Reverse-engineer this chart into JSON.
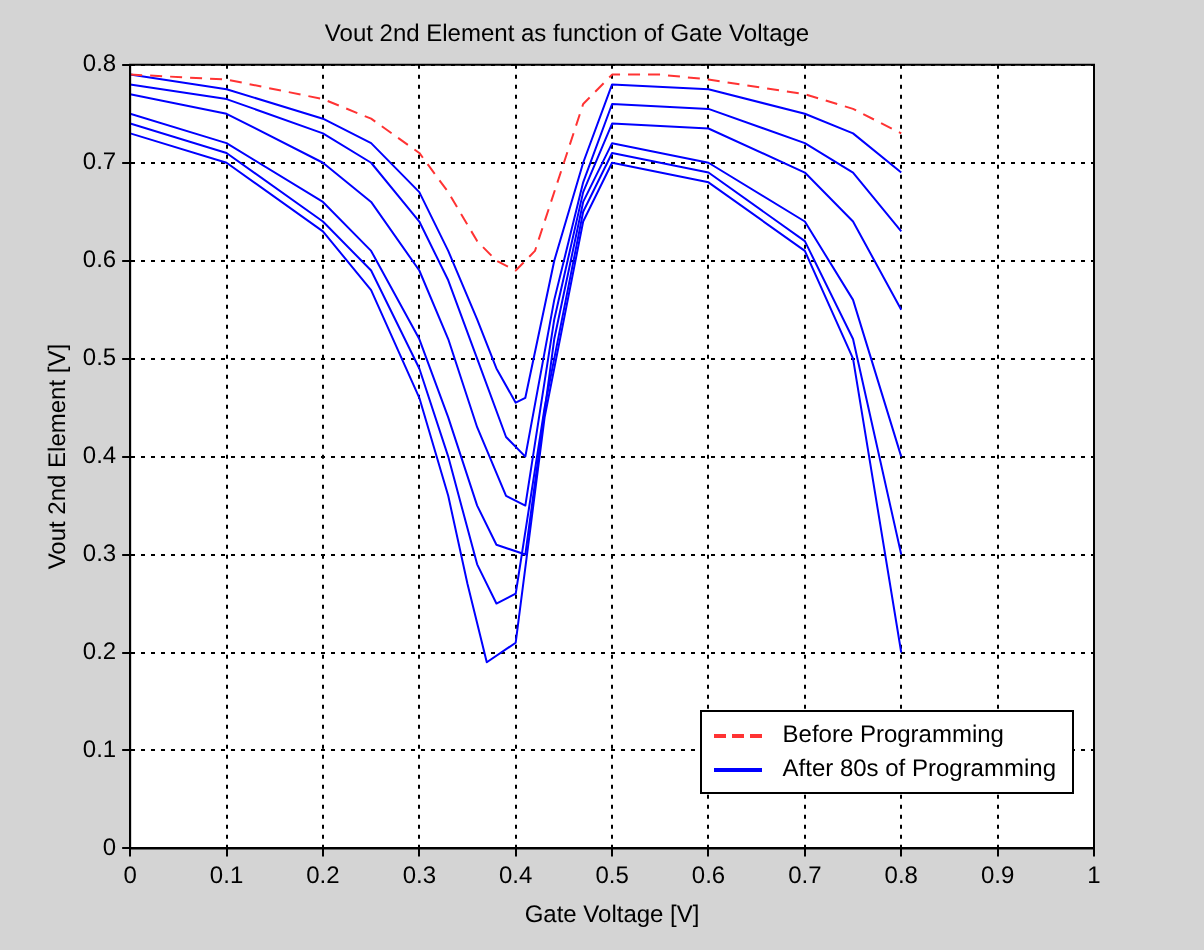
{
  "chart_data": {
    "type": "line",
    "title": "Vout 2nd Element as function of Gate Voltage",
    "xlabel": "Gate Voltage [V]",
    "ylabel": "Vout 2nd Element [V]",
    "xlim": [
      0,
      1
    ],
    "xticks": [
      0,
      0.1,
      0.2,
      0.3,
      0.4,
      0.5,
      0.6,
      0.7,
      0.8,
      0.9,
      1
    ],
    "ylim": [
      0,
      0.8
    ],
    "yticks": [
      0,
      0.1,
      0.2,
      0.3,
      0.4,
      0.5,
      0.6,
      0.7,
      0.8
    ],
    "grid": true,
    "legend": "bottom right",
    "marker": "none",
    "series": [
      {
        "name": "Before Programming",
        "color": "#ff3333",
        "line_style": "dashed",
        "x": [
          0,
          0.1,
          0.2,
          0.25,
          0.3,
          0.33,
          0.36,
          0.38,
          0.4,
          0.42,
          0.45,
          0.47,
          0.5,
          0.55,
          0.6,
          0.7,
          0.75,
          0.8
        ],
        "values": [
          0.79,
          0.785,
          0.765,
          0.745,
          0.71,
          0.67,
          0.62,
          0.6,
          0.59,
          0.61,
          0.7,
          0.76,
          0.79,
          0.79,
          0.785,
          0.77,
          0.755,
          0.73
        ]
      },
      {
        "name": "After 80s of Programming",
        "color": "#0000ff",
        "line_style": "solid",
        "x": [
          0,
          0.1,
          0.2,
          0.25,
          0.3,
          0.33,
          0.36,
          0.38,
          0.4,
          0.41,
          0.44,
          0.47,
          0.5,
          0.6,
          0.7,
          0.75,
          0.8
        ],
        "values": [
          0.79,
          0.775,
          0.745,
          0.72,
          0.67,
          0.61,
          0.54,
          0.49,
          0.455,
          0.46,
          0.6,
          0.7,
          0.78,
          0.775,
          0.75,
          0.73,
          0.69
        ]
      },
      {
        "color": "#0000ff",
        "line_style": "solid",
        "x": [
          0,
          0.1,
          0.2,
          0.25,
          0.3,
          0.33,
          0.36,
          0.39,
          0.41,
          0.44,
          0.47,
          0.5,
          0.6,
          0.7,
          0.75,
          0.8
        ],
        "values": [
          0.78,
          0.765,
          0.73,
          0.7,
          0.64,
          0.58,
          0.5,
          0.42,
          0.4,
          0.56,
          0.68,
          0.76,
          0.755,
          0.72,
          0.69,
          0.63
        ]
      },
      {
        "color": "#0000ff",
        "line_style": "solid",
        "x": [
          0,
          0.1,
          0.2,
          0.25,
          0.3,
          0.33,
          0.36,
          0.39,
          0.41,
          0.44,
          0.47,
          0.5,
          0.6,
          0.7,
          0.75,
          0.8
        ],
        "values": [
          0.77,
          0.75,
          0.7,
          0.66,
          0.59,
          0.52,
          0.43,
          0.36,
          0.35,
          0.54,
          0.67,
          0.74,
          0.735,
          0.69,
          0.64,
          0.55
        ]
      },
      {
        "color": "#0000ff",
        "line_style": "solid",
        "x": [
          0,
          0.1,
          0.2,
          0.25,
          0.3,
          0.33,
          0.36,
          0.38,
          0.41,
          0.44,
          0.47,
          0.5,
          0.6,
          0.7,
          0.75,
          0.8
        ],
        "values": [
          0.75,
          0.72,
          0.66,
          0.61,
          0.52,
          0.44,
          0.35,
          0.31,
          0.3,
          0.52,
          0.66,
          0.72,
          0.7,
          0.64,
          0.56,
          0.4
        ]
      },
      {
        "color": "#0000ff",
        "line_style": "solid",
        "x": [
          0,
          0.1,
          0.2,
          0.25,
          0.3,
          0.33,
          0.36,
          0.38,
          0.4,
          0.43,
          0.47,
          0.5,
          0.6,
          0.7,
          0.75,
          0.8
        ],
        "values": [
          0.74,
          0.71,
          0.64,
          0.59,
          0.49,
          0.4,
          0.29,
          0.25,
          0.26,
          0.45,
          0.65,
          0.71,
          0.69,
          0.62,
          0.52,
          0.3
        ]
      },
      {
        "color": "#0000ff",
        "line_style": "solid",
        "x": [
          0,
          0.1,
          0.2,
          0.25,
          0.3,
          0.33,
          0.35,
          0.37,
          0.4,
          0.43,
          0.47,
          0.5,
          0.6,
          0.7,
          0.75,
          0.8
        ],
        "values": [
          0.73,
          0.7,
          0.63,
          0.57,
          0.46,
          0.36,
          0.27,
          0.19,
          0.21,
          0.44,
          0.64,
          0.7,
          0.68,
          0.61,
          0.5,
          0.2
        ]
      }
    ]
  }
}
